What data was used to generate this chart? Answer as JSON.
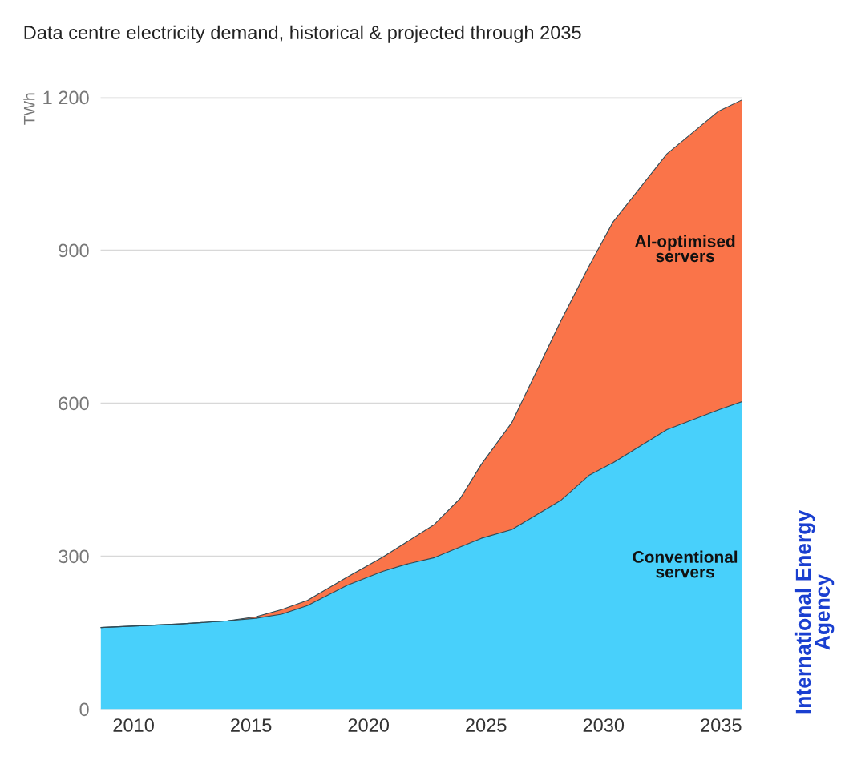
{
  "chart_data": {
    "type": "area",
    "stacked": true,
    "title": "Data centre electricity demand, historical & projected through 2035",
    "ylabel": "TWh",
    "x": [
      2008.6,
      2012,
      2014,
      2015.2,
      2016.3,
      2017.4,
      2019.1,
      2020.6,
      2021.6,
      2022.8,
      2023.9,
      2024.8,
      2026.1,
      2028.2,
      2029.4,
      2030.4,
      2032.7,
      2034.9,
      2035.9
    ],
    "series": [
      {
        "name": "Conventional servers",
        "color": "#48d0fb",
        "values": [
          160,
          167,
          173,
          178,
          186,
          203,
          243,
          270,
          284,
          297,
          318,
          335,
          352,
          410,
          459,
          483,
          548,
          587,
          603
        ]
      },
      {
        "name": "AI-optimised servers",
        "color": "#fa7449",
        "values": [
          0,
          0,
          0,
          3,
          9,
          10,
          16,
          28,
          43,
          65,
          95,
          145,
          210,
          353,
          411,
          472,
          541,
          586,
          592
        ]
      }
    ],
    "xlim": [
      2008.6,
      2035.9
    ],
    "xticks": [
      2010,
      2015,
      2020,
      2025,
      2030,
      2035
    ],
    "ylim": [
      0,
      1200
    ],
    "yticks": [
      0,
      300,
      600,
      900,
      {
        "value": 1200,
        "label": "1 200"
      }
    ],
    "grid": "y",
    "legend": false,
    "annotations": [
      "International Energy Agency"
    ]
  }
}
